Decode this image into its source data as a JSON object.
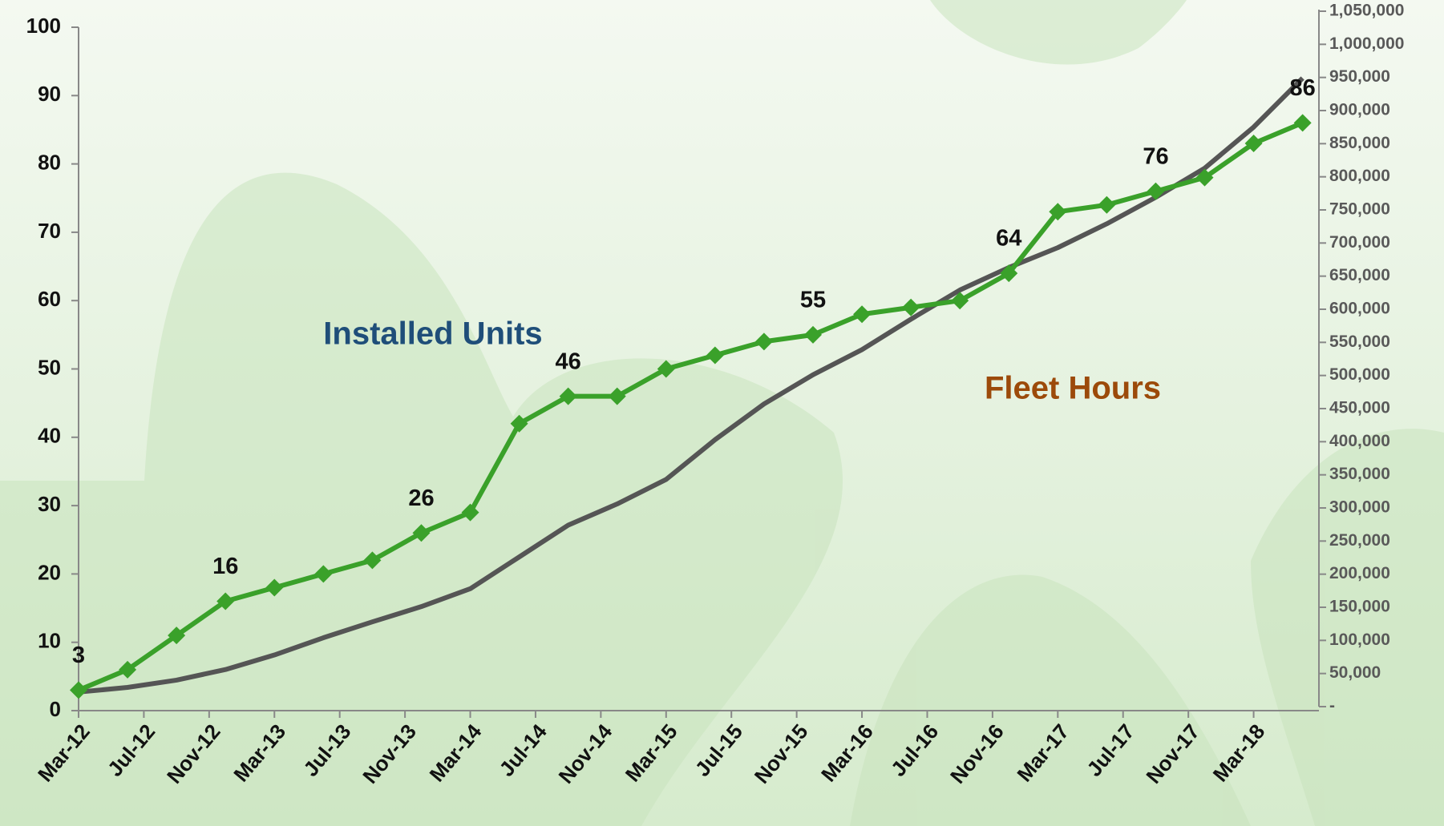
{
  "chart_data": {
    "type": "line",
    "x": [
      "Mar-12",
      "Jun-12",
      "Sep-12",
      "Dec-12",
      "Mar-13",
      "Jun-13",
      "Sep-13",
      "Dec-13",
      "Mar-14",
      "Jun-14",
      "Sep-14",
      "Dec-14",
      "Mar-15",
      "Jun-15",
      "Sep-15",
      "Dec-15",
      "Mar-16",
      "Jun-16",
      "Sep-16",
      "Dec-16",
      "Mar-17",
      "Jun-17",
      "Sep-17",
      "Dec-17",
      "Mar-18",
      "Jun-18"
    ],
    "xlim": [
      "Mar-12",
      "Jul-18"
    ],
    "xticks": [
      "Mar-12",
      "Jul-12",
      "Nov-12",
      "Mar-13",
      "Jul-13",
      "Nov-13",
      "Mar-14",
      "Jul-14",
      "Nov-14",
      "Mar-15",
      "Jul-15",
      "Nov-15",
      "Mar-16",
      "Jul-16",
      "Nov-16",
      "Mar-17",
      "Jul-17",
      "Nov-17",
      "Mar-18"
    ],
    "ylim": [
      0,
      100
    ],
    "yticks": [
      0,
      10,
      20,
      30,
      40,
      50,
      60,
      70,
      80,
      90,
      100
    ],
    "y2lim": [
      0,
      1050000
    ],
    "y2ticks": [
      {
        "value": 0,
        "label": "-"
      },
      {
        "value": 50000,
        "label": "50,000"
      },
      {
        "value": 100000,
        "label": "100,000"
      },
      {
        "value": 150000,
        "label": "150,000"
      },
      {
        "value": 200000,
        "label": "200,000"
      },
      {
        "value": 250000,
        "label": "250,000"
      },
      {
        "value": 300000,
        "label": "300,000"
      },
      {
        "value": 350000,
        "label": "350,000"
      },
      {
        "value": 400000,
        "label": "400,000"
      },
      {
        "value": 450000,
        "label": "450,000"
      },
      {
        "value": 500000,
        "label": "500,000"
      },
      {
        "value": 550000,
        "label": "550,000"
      },
      {
        "value": 600000,
        "label": "600,000"
      },
      {
        "value": 650000,
        "label": "650,000"
      },
      {
        "value": 700000,
        "label": "700,000"
      },
      {
        "value": 750000,
        "label": "750,000"
      },
      {
        "value": 800000,
        "label": "800,000"
      },
      {
        "value": 850000,
        "label": "850,000"
      },
      {
        "value": 900000,
        "label": "900,000"
      },
      {
        "value": 950000,
        "label": "950,000"
      },
      {
        "value": 1000000,
        "label": "1,000,000"
      },
      {
        "value": 1050000,
        "label": "1,050,000"
      }
    ],
    "series": [
      {
        "name": "Installed Units",
        "color": "#3aa12a",
        "label_color": "#1f4e79",
        "values": [
          3,
          6,
          11,
          16,
          18,
          20,
          22,
          26,
          29,
          42,
          46,
          46,
          50,
          52,
          54,
          55,
          58,
          59,
          60,
          64,
          73,
          74,
          76,
          78,
          83,
          86
        ],
        "value_labels": [
          3,
          null,
          null,
          16,
          null,
          null,
          null,
          26,
          null,
          null,
          46,
          null,
          null,
          null,
          null,
          55,
          null,
          null,
          null,
          64,
          null,
          null,
          76,
          null,
          null,
          86
        ]
      },
      {
        "name": "Fleet Hours",
        "color": "#555555",
        "label_color": "#9c4a0a",
        "axis": "y2",
        "values": [
          22000,
          29000,
          40000,
          56000,
          78000,
          104000,
          128000,
          151000,
          178000,
          226000,
          274000,
          306000,
          343000,
          403000,
          457000,
          501000,
          539000,
          585000,
          629000,
          663000,
          693000,
          729000,
          769000,
          813000,
          875000,
          949000
        ]
      }
    ]
  }
}
